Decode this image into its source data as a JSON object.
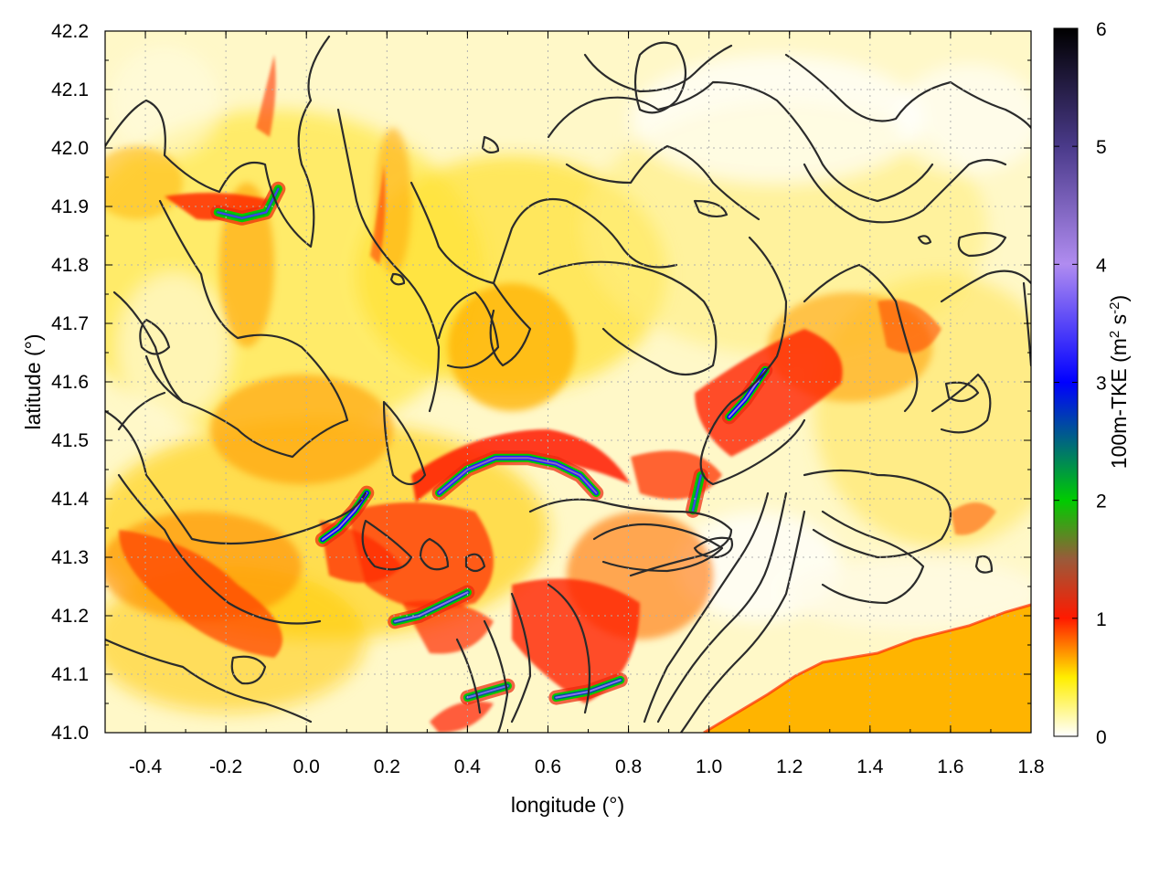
{
  "chart_data": {
    "type": "heatmap",
    "title": "",
    "xlabel": "longitude (°)",
    "ylabel": "latitude (°)",
    "xlim": [
      -0.5,
      1.8
    ],
    "ylim": [
      41.0,
      42.2
    ],
    "x_ticks": [
      -0.4,
      -0.2,
      0.0,
      0.2,
      0.4,
      0.6,
      0.8,
      1.0,
      1.2,
      1.4,
      1.6,
      1.8
    ],
    "x_tick_labels": [
      "-0.4",
      "-0.2",
      "0.0",
      "0.2",
      "0.4",
      "0.6",
      "0.8",
      "1.0",
      "1.2",
      "1.4",
      "1.6",
      "1.8"
    ],
    "y_ticks": [
      41.0,
      41.1,
      41.2,
      41.3,
      41.4,
      41.5,
      41.6,
      41.7,
      41.8,
      41.9,
      42.0,
      42.1,
      42.2
    ],
    "y_tick_labels": [
      "41.0",
      "41.1",
      "41.2",
      "41.3",
      "41.4",
      "41.5",
      "41.6",
      "41.7",
      "41.8",
      "41.9",
      "42.0",
      "42.1",
      "42.2"
    ],
    "grid": true,
    "colorbar": {
      "label_main": "100m-TKE (m",
      "label_sup1": "2",
      "label_mid": " s",
      "label_sup2": "-2",
      "label_end": ")",
      "range": [
        0,
        6
      ],
      "ticks": [
        0,
        1,
        2,
        3,
        4,
        5,
        6
      ],
      "tick_labels": [
        "0",
        "1",
        "2",
        "3",
        "4",
        "5",
        "6"
      ],
      "colormap": [
        {
          "v": 0.0,
          "color": "#ffffff"
        },
        {
          "v": 0.5,
          "color": "#ffee00"
        },
        {
          "v": 1.0,
          "color": "#ff1a00"
        },
        {
          "v": 1.5,
          "color": "#9a5a3a"
        },
        {
          "v": 2.0,
          "color": "#00cc00"
        },
        {
          "v": 3.0,
          "color": "#0000ff"
        },
        {
          "v": 4.0,
          "color": "#b08cf0"
        },
        {
          "v": 5.0,
          "color": "#4a3a8a"
        },
        {
          "v": 6.0,
          "color": "#000000"
        }
      ]
    },
    "high_tke_bands": [
      {
        "x": [
          0.33,
          0.4,
          0.47,
          0.55,
          0.62,
          0.68,
          0.72
        ],
        "y": [
          41.41,
          41.45,
          41.47,
          41.47,
          41.46,
          41.44,
          41.41
        ],
        "tke": 3.2
      },
      {
        "x": [
          1.05,
          1.09,
          1.12,
          1.14
        ],
        "y": [
          41.54,
          41.57,
          41.6,
          41.62
        ],
        "tke": 3.0
      },
      {
        "x": [
          0.04,
          0.08,
          0.12,
          0.15
        ],
        "y": [
          41.33,
          41.35,
          41.38,
          41.41
        ],
        "tke": 3.0
      },
      {
        "x": [
          -0.22,
          -0.16,
          -0.1,
          -0.07
        ],
        "y": [
          41.89,
          41.88,
          41.89,
          41.93
        ],
        "tke": 2.2
      },
      {
        "x": [
          0.22,
          0.28,
          0.34,
          0.4
        ],
        "y": [
          41.19,
          41.2,
          41.22,
          41.24
        ],
        "tke": 2.6
      },
      {
        "x": [
          0.4,
          0.45,
          0.5
        ],
        "y": [
          41.06,
          41.07,
          41.08
        ],
        "tke": 2.5
      },
      {
        "x": [
          0.62,
          0.7,
          0.78
        ],
        "y": [
          41.06,
          41.07,
          41.09
        ],
        "tke": 2.6
      },
      {
        "x": [
          0.96,
          0.97,
          0.98
        ],
        "y": [
          41.38,
          41.41,
          41.44
        ],
        "tke": 2.2
      }
    ],
    "sea_region_tke": 0.5
  }
}
